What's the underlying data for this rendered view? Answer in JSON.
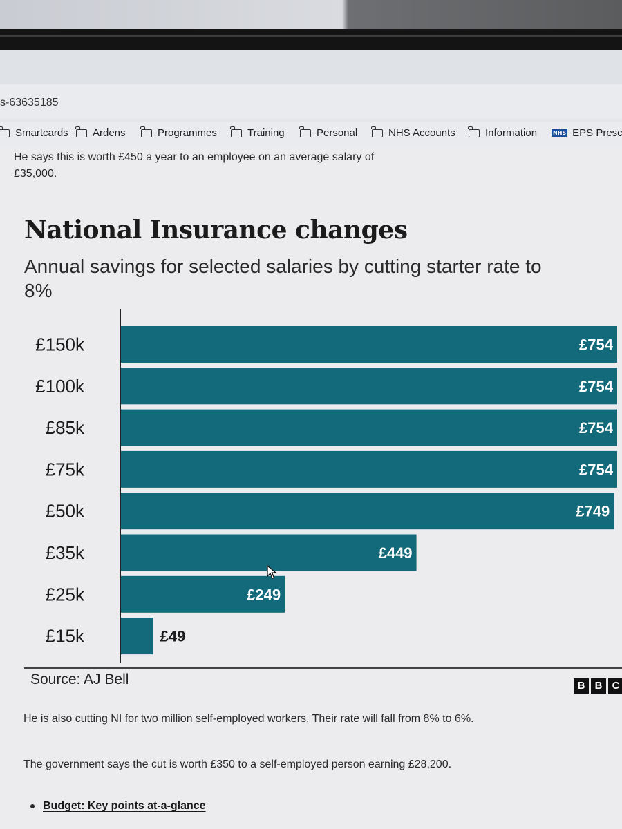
{
  "browser": {
    "url_fragment": "s-63635185",
    "bookmarks": [
      {
        "label": "Smartcards",
        "icon": "folder-icon"
      },
      {
        "label": "Ardens",
        "icon": "folder-icon"
      },
      {
        "label": "Programmes",
        "icon": "folder-icon"
      },
      {
        "label": "Training",
        "icon": "folder-icon"
      },
      {
        "label": "Personal",
        "icon": "folder-icon"
      },
      {
        "label": "NHS Accounts",
        "icon": "folder-icon"
      },
      {
        "label": "Information",
        "icon": "folder-icon"
      },
      {
        "label": "EPS Prescrip",
        "icon": "nhs-icon",
        "badge": "NHS"
      }
    ]
  },
  "article": {
    "intro_line1": "He says this is worth £450 a year to an employee on an average salary of",
    "intro_line2": "£35,000.",
    "para1": "He is also cutting NI for two million self-employed workers. Their rate will fall from 8% to 6%.",
    "para2": "The government says the cut is worth £350 to a self-employed person earning £28,200.",
    "link": "Budget: Key points at-a-glance"
  },
  "chart_data": {
    "type": "bar",
    "orientation": "horizontal",
    "title": "National Insurance changes",
    "subtitle": "Annual savings for selected salaries by cutting starter rate to 8%",
    "categories": [
      "£150k",
      "£100k",
      "£85k",
      "£75k",
      "£50k",
      "£35k",
      "£25k",
      "£15k"
    ],
    "values": [
      754,
      754,
      754,
      754,
      749,
      449,
      249,
      49
    ],
    "value_labels": [
      "£754",
      "£754",
      "£754",
      "£754",
      "£749",
      "£449",
      "£249",
      "£49"
    ],
    "xlim": [
      0,
      754
    ],
    "grid": false,
    "bar_color": "#126a7a",
    "source": "Source: AJ Bell",
    "branding": [
      "B",
      "B",
      "C"
    ]
  }
}
